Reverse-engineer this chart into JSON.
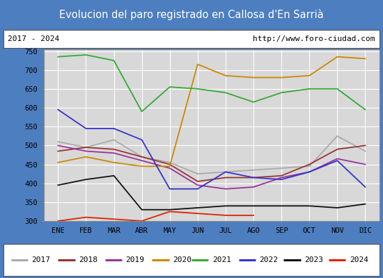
{
  "title": "Evolucion del paro registrado en Callosa d'En Sarrià",
  "subtitle_left": "2017 - 2024",
  "subtitle_right": "http://www.foro-ciudad.com",
  "ylim": [
    300,
    755
  ],
  "yticks": [
    300,
    350,
    400,
    450,
    500,
    550,
    600,
    650,
    700,
    750
  ],
  "xtick_labels": [
    "ENE",
    "FEB",
    "MAR",
    "ABR",
    "MAY",
    "JUN",
    "JUL",
    "AGO",
    "SEP",
    "OCT",
    "NOV",
    "DIC"
  ],
  "title_bg_color": "#4d7ebf",
  "title_text_color": "#ffffff",
  "plot_bg_color": "#d8d8d8",
  "grid_color": "#bbbbbb",
  "border_color": "#888888",
  "series": {
    "2017": {
      "color": "#aaaaaa",
      "data": [
        510,
        495,
        515,
        470,
        455,
        425,
        430,
        435,
        440,
        445,
        525,
        485
      ]
    },
    "2018": {
      "color": "#993333",
      "data": [
        485,
        495,
        490,
        470,
        450,
        405,
        415,
        415,
        420,
        450,
        490,
        500
      ]
    },
    "2019": {
      "color": "#993399",
      "data": [
        500,
        485,
        480,
        460,
        440,
        395,
        385,
        390,
        415,
        430,
        465,
        450
      ]
    },
    "2020": {
      "color": "#cc8800",
      "data": [
        455,
        470,
        455,
        445,
        445,
        715,
        685,
        680,
        680,
        685,
        735,
        730
      ]
    },
    "2021": {
      "color": "#33aa33",
      "data": [
        735,
        740,
        725,
        590,
        655,
        650,
        640,
        615,
        640,
        650,
        650,
        595
      ]
    },
    "2022": {
      "color": "#3333cc",
      "data": [
        595,
        545,
        545,
        515,
        385,
        385,
        430,
        415,
        410,
        430,
        460,
        390
      ]
    },
    "2023": {
      "color": "#111111",
      "data": [
        395,
        410,
        420,
        330,
        330,
        335,
        340,
        340,
        340,
        340,
        335,
        345
      ]
    },
    "2024": {
      "color": "#dd2200",
      "data": [
        300,
        310,
        305,
        300,
        325,
        320,
        315,
        315,
        null,
        null,
        null,
        null
      ]
    }
  }
}
